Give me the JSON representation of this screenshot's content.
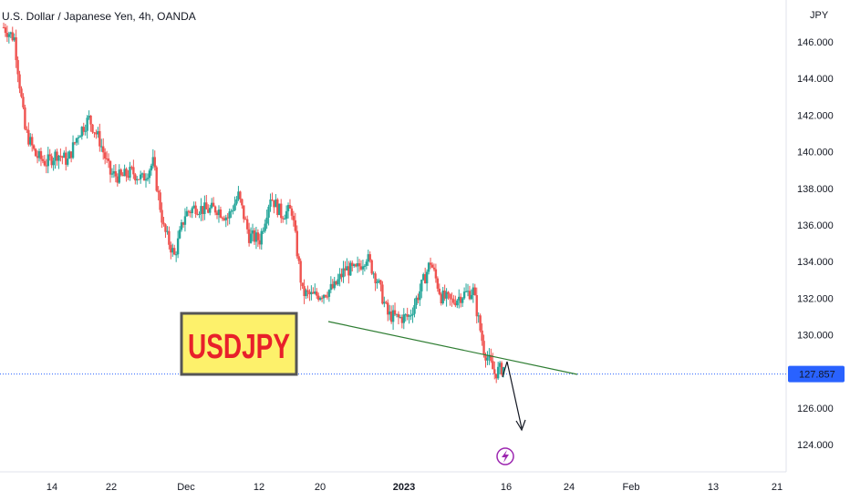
{
  "header": {
    "title": "U.S. Dollar / Japanese Yen, 4h, OANDA"
  },
  "colors": {
    "up": "#26a69a",
    "down": "#ef5350",
    "trendline": "#2e7d32",
    "price_label_bg": "#2962ff",
    "badge_fill": "#fdf16b",
    "badge_border": "#555555",
    "badge_text": "#e8202a",
    "lightning": "#9c27b0"
  },
  "annotation": {
    "badge_text": "USDJPY",
    "icon": "lightning-icon"
  },
  "chart_data": {
    "type": "candlestick",
    "title": "U.S. Dollar / Japanese Yen, 4h, OANDA",
    "y_axis_unit": "JPY",
    "ylim": [
      123,
      147.5
    ],
    "y_ticks": [
      "146.000",
      "144.000",
      "142.000",
      "140.000",
      "138.000",
      "136.000",
      "134.000",
      "132.000",
      "130.000",
      "128.000",
      "126.000",
      "124.000"
    ],
    "x_tick_labels": [
      "14",
      "22",
      "Dec",
      "12",
      "20",
      "2023",
      "16",
      "24",
      "Feb",
      "13",
      "21"
    ],
    "last_price": "127.857",
    "series": [
      {
        "x": "Nov 10",
        "close": 146.8
      },
      {
        "x": "Nov 11",
        "close": 146.2
      },
      {
        "x": "Nov 14",
        "close": 141.2
      },
      {
        "x": "Nov 15",
        "close": 139.8
      },
      {
        "x": "Nov 16",
        "close": 139.4
      },
      {
        "x": "Nov 17",
        "close": 139.9
      },
      {
        "x": "Nov 18",
        "close": 139.5
      },
      {
        "x": "Nov 21",
        "close": 141.0
      },
      {
        "x": "Nov 22",
        "close": 141.8
      },
      {
        "x": "Nov 23",
        "close": 140.6
      },
      {
        "x": "Nov 24",
        "close": 138.8
      },
      {
        "x": "Nov 25",
        "close": 138.6
      },
      {
        "x": "Nov 28",
        "close": 138.9
      },
      {
        "x": "Nov 29",
        "close": 138.5
      },
      {
        "x": "Nov 30",
        "close": 139.4
      },
      {
        "x": "Dec 1",
        "close": 135.8
      },
      {
        "x": "Dec 2",
        "close": 134.3
      },
      {
        "x": "Dec 5",
        "close": 136.6
      },
      {
        "x": "Dec 6",
        "close": 137.0
      },
      {
        "x": "Dec 7",
        "close": 136.8
      },
      {
        "x": "Dec 8",
        "close": 136.9
      },
      {
        "x": "Dec 9",
        "close": 136.4
      },
      {
        "x": "Dec 12",
        "close": 137.6
      },
      {
        "x": "Dec 13",
        "close": 135.4
      },
      {
        "x": "Dec 14",
        "close": 135.2
      },
      {
        "x": "Dec 15",
        "close": 137.6
      },
      {
        "x": "Dec 16",
        "close": 136.6
      },
      {
        "x": "Dec 19",
        "close": 136.8
      },
      {
        "x": "Dec 20",
        "close": 132.3
      },
      {
        "x": "Dec 21",
        "close": 132.1
      },
      {
        "x": "Dec 22",
        "close": 132.3
      },
      {
        "x": "Dec 23",
        "close": 132.6
      },
      {
        "x": "Dec 26",
        "close": 133.6
      },
      {
        "x": "Dec 27",
        "close": 133.5
      },
      {
        "x": "Dec 28",
        "close": 134.3
      },
      {
        "x": "Dec 29",
        "close": 133.0
      },
      {
        "x": "Dec 30",
        "close": 131.1
      },
      {
        "x": "Jan 2",
        "close": 130.9
      },
      {
        "x": "Jan 3",
        "close": 131.0
      },
      {
        "x": "Jan 4",
        "close": 132.4
      },
      {
        "x": "Jan 5",
        "close": 134.0
      },
      {
        "x": "Jan 6",
        "close": 132.1
      },
      {
        "x": "Jan 9",
        "close": 131.8
      },
      {
        "x": "Jan 10",
        "close": 132.2
      },
      {
        "x": "Jan 11",
        "close": 132.4
      },
      {
        "x": "Jan 12",
        "close": 129.2
      },
      {
        "x": "Jan 13",
        "close": 127.9
      },
      {
        "x": "Jan 16",
        "close": 128.3
      }
    ]
  }
}
